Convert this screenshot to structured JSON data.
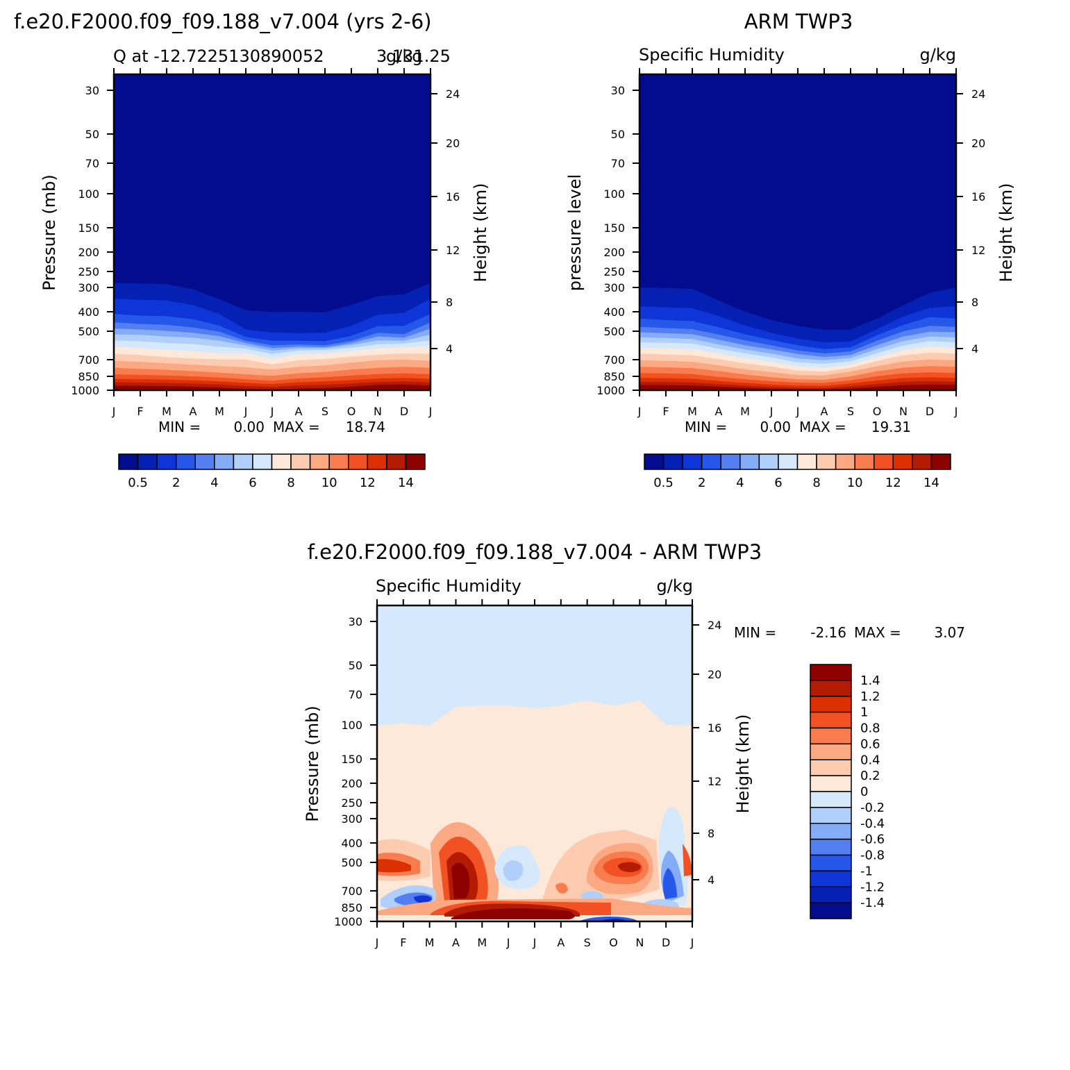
{
  "colors": {
    "positive_levels": [
      "#fde9d9",
      "#fdcbb0",
      "#fba982",
      "#f97c4e",
      "#f25223",
      "#dd3002",
      "#b31c03",
      "#8d0000"
    ],
    "negative_levels": [
      "#d6e8fc",
      "#b0cffa",
      "#85acf7",
      "#537ff1",
      "#2558e9",
      "#0d35d8",
      "#0521b3",
      "#020c8d"
    ],
    "q_levels": [
      "#020c8d",
      "#0521b3",
      "#0d35d8",
      "#2558e9",
      "#537ff1",
      "#85acf7",
      "#b0cffa",
      "#d6e8fc",
      "#fde9d9",
      "#fdcbb0",
      "#fba982",
      "#f97c4e",
      "#f25223",
      "#dd3002",
      "#b31c03",
      "#8d0000"
    ]
  },
  "chart_data": [
    {
      "type": "heatmap",
      "title": "f.e20.F2000.f09_f09.188_v7.004 (yrs 2-6)",
      "subtitle_left": "Q at -12.7225130890052",
      "subtitle_overlap": "3 131.25",
      "subtitle_right": "g/kg",
      "ylabel": "Pressure (mb)",
      "y2label": "Height (km)",
      "months": [
        "J",
        "F",
        "M",
        "A",
        "M",
        "J",
        "J",
        "A",
        "S",
        "O",
        "N",
        "D",
        "J"
      ],
      "pressure_ticks": [
        "30",
        "50",
        "70",
        "100",
        "150",
        "200",
        "250",
        "300",
        "400",
        "500",
        "700",
        "850",
        "1000"
      ],
      "height_ticks": [
        "24",
        "20",
        "16",
        "12",
        "8",
        "4"
      ],
      "stats": {
        "min_label": "MIN =",
        "min": "0.00",
        "max_label": "MAX =",
        "max": "18.74"
      },
      "colorbar_labels": [
        "0.5",
        "2",
        "4",
        "6",
        "8",
        "10",
        "12",
        "14"
      ],
      "level_boundary_pressures": [
        [
          285,
          287,
          289,
          306,
          345,
          393,
          401,
          400,
          402,
          369,
          333,
          325,
          285
        ],
        [
          343,
          347,
          350,
          370,
          410,
          490,
          508,
          511,
          509,
          470,
          414,
          405,
          343
        ],
        [
          410,
          418,
          421,
          436,
          469,
          535,
          560,
          560,
          562,
          528,
          472,
          470,
          410
        ],
        [
          452,
          460,
          465,
          479,
          503,
          560,
          590,
          585,
          590,
          561,
          510,
          518,
          452
        ],
        [
          485,
          490,
          498,
          509,
          530,
          575,
          610,
          600,
          605,
          575,
          532,
          540,
          485
        ],
        [
          520,
          522,
          532,
          540,
          560,
          592,
          628,
          612,
          612,
          588,
          558,
          560,
          520
        ],
        [
          557,
          563,
          575,
          582,
          600,
          615,
          655,
          628,
          625,
          608,
          584,
          578,
          557
        ],
        [
          600,
          612,
          625,
          632,
          648,
          648,
          690,
          658,
          651,
          634,
          612,
          605,
          600
        ],
        [
          654,
          662,
          680,
          690,
          697,
          698,
          740,
          705,
          694,
          675,
          660,
          650,
          654
        ],
        [
          710,
          718,
          730,
          742,
          755,
          765,
          785,
          760,
          748,
          725,
          705,
          700,
          710
        ],
        [
          770,
          778,
          788,
          800,
          815,
          830,
          845,
          820,
          808,
          785,
          770,
          760,
          770
        ],
        [
          830,
          835,
          842,
          850,
          862,
          880,
          895,
          870,
          860,
          842,
          828,
          820,
          830
        ],
        [
          875,
          878,
          884,
          891,
          902,
          918,
          930,
          910,
          902,
          888,
          872,
          865,
          875
        ],
        [
          912,
          914,
          918,
          925,
          935,
          952,
          962,
          945,
          938,
          924,
          908,
          902,
          912
        ],
        [
          948,
          950,
          953,
          960,
          970,
          985,
          995,
          980,
          975,
          960,
          940,
          935,
          948
        ]
      ]
    },
    {
      "type": "heatmap",
      "title": "ARM TWP3",
      "subtitle_left": "Specific Humidity",
      "subtitle_right": "g/kg",
      "ylabel": "pressure level",
      "y2label": "Height (km)",
      "months": [
        "J",
        "F",
        "M",
        "A",
        "M",
        "J",
        "J",
        "A",
        "S",
        "O",
        "N",
        "D",
        "J"
      ],
      "pressure_ticks": [
        "30",
        "50",
        "70",
        "100",
        "150",
        "200",
        "250",
        "300",
        "400",
        "500",
        "700",
        "850",
        "1000"
      ],
      "height_ticks": [
        "24",
        "20",
        "16",
        "12",
        "8",
        "4"
      ],
      "stats": {
        "min_label": "MIN =",
        "min": "0.00",
        "max_label": "MAX =",
        "max": "19.31"
      },
      "colorbar_labels": [
        "0.5",
        "2",
        "4",
        "6",
        "8",
        "10",
        "12",
        "14"
      ],
      "level_boundary_pressures": [
        [
          300,
          302,
          305,
          350,
          400,
          440,
          470,
          492,
          490,
          433,
          370,
          320,
          300
        ],
        [
          375,
          380,
          383,
          420,
          468,
          510,
          546,
          570,
          565,
          488,
          422,
          382,
          375
        ],
        [
          432,
          440,
          445,
          478,
          518,
          555,
          590,
          618,
          605,
          525,
          465,
          425,
          432
        ],
        [
          476,
          482,
          488,
          520,
          557,
          590,
          628,
          650,
          635,
          560,
          500,
          470,
          476
        ],
        [
          506,
          512,
          518,
          552,
          590,
          620,
          655,
          678,
          662,
          590,
          532,
          503,
          506
        ],
        [
          538,
          542,
          548,
          585,
          620,
          652,
          690,
          705,
          685,
          618,
          562,
          532,
          538
        ],
        [
          570,
          574,
          578,
          615,
          650,
          682,
          722,
          735,
          712,
          648,
          592,
          562,
          570
        ],
        [
          610,
          614,
          618,
          652,
          688,
          718,
          758,
          770,
          742,
          680,
          626,
          600,
          610
        ],
        [
          652,
          658,
          664,
          696,
          732,
          758,
          796,
          805,
          770,
          712,
          665,
          645,
          652
        ],
        [
          705,
          710,
          718,
          748,
          782,
          810,
          838,
          842,
          805,
          756,
          715,
          698,
          705
        ],
        [
          760,
          765,
          772,
          800,
          832,
          858,
          880,
          885,
          850,
          802,
          768,
          755,
          760
        ],
        [
          818,
          822,
          828,
          855,
          880,
          900,
          915,
          918,
          890,
          850,
          820,
          812,
          818
        ],
        [
          865,
          868,
          874,
          898,
          918,
          935,
          948,
          950,
          925,
          893,
          866,
          860,
          865
        ],
        [
          905,
          908,
          912,
          932,
          948,
          962,
          972,
          975,
          955,
          930,
          906,
          900,
          905
        ],
        [
          940,
          942,
          946,
          960,
          972,
          985,
          992,
          995,
          980,
          962,
          942,
          937,
          940
        ]
      ]
    },
    {
      "type": "heatmap",
      "title": "f.e20.F2000.f09_f09.188_v7.004 - ARM TWP3",
      "subtitle_left": "Specific Humidity",
      "subtitle_right": "g/kg",
      "ylabel": "Pressure (mb)",
      "y2label": "Height (km)",
      "months": [
        "J",
        "F",
        "M",
        "A",
        "M",
        "J",
        "J",
        "A",
        "S",
        "O",
        "N",
        "D",
        "J"
      ],
      "pressure_ticks": [
        "30",
        "50",
        "70",
        "100",
        "150",
        "200",
        "250",
        "300",
        "400",
        "500",
        "700",
        "850",
        "1000"
      ],
      "height_ticks": [
        "24",
        "20",
        "16",
        "12",
        "8",
        "4"
      ],
      "stats": {
        "min_label": "MIN =",
        "min": "-2.16",
        "max_label": "MAX =",
        "max": "3.07"
      },
      "colorbar_labels": [
        "1.4",
        "1.2",
        "1",
        "0.8",
        "0.6",
        "0.4",
        "0.2",
        "0",
        "-0.2",
        "-0.4",
        "-0.6",
        "-0.8",
        "-1",
        "-1.2",
        "-1.4"
      ],
      "zero_line_pressures": [
        101,
        98,
        101,
        81,
        80,
        80,
        82,
        80,
        75,
        80,
        75,
        100,
        101
      ]
    }
  ]
}
